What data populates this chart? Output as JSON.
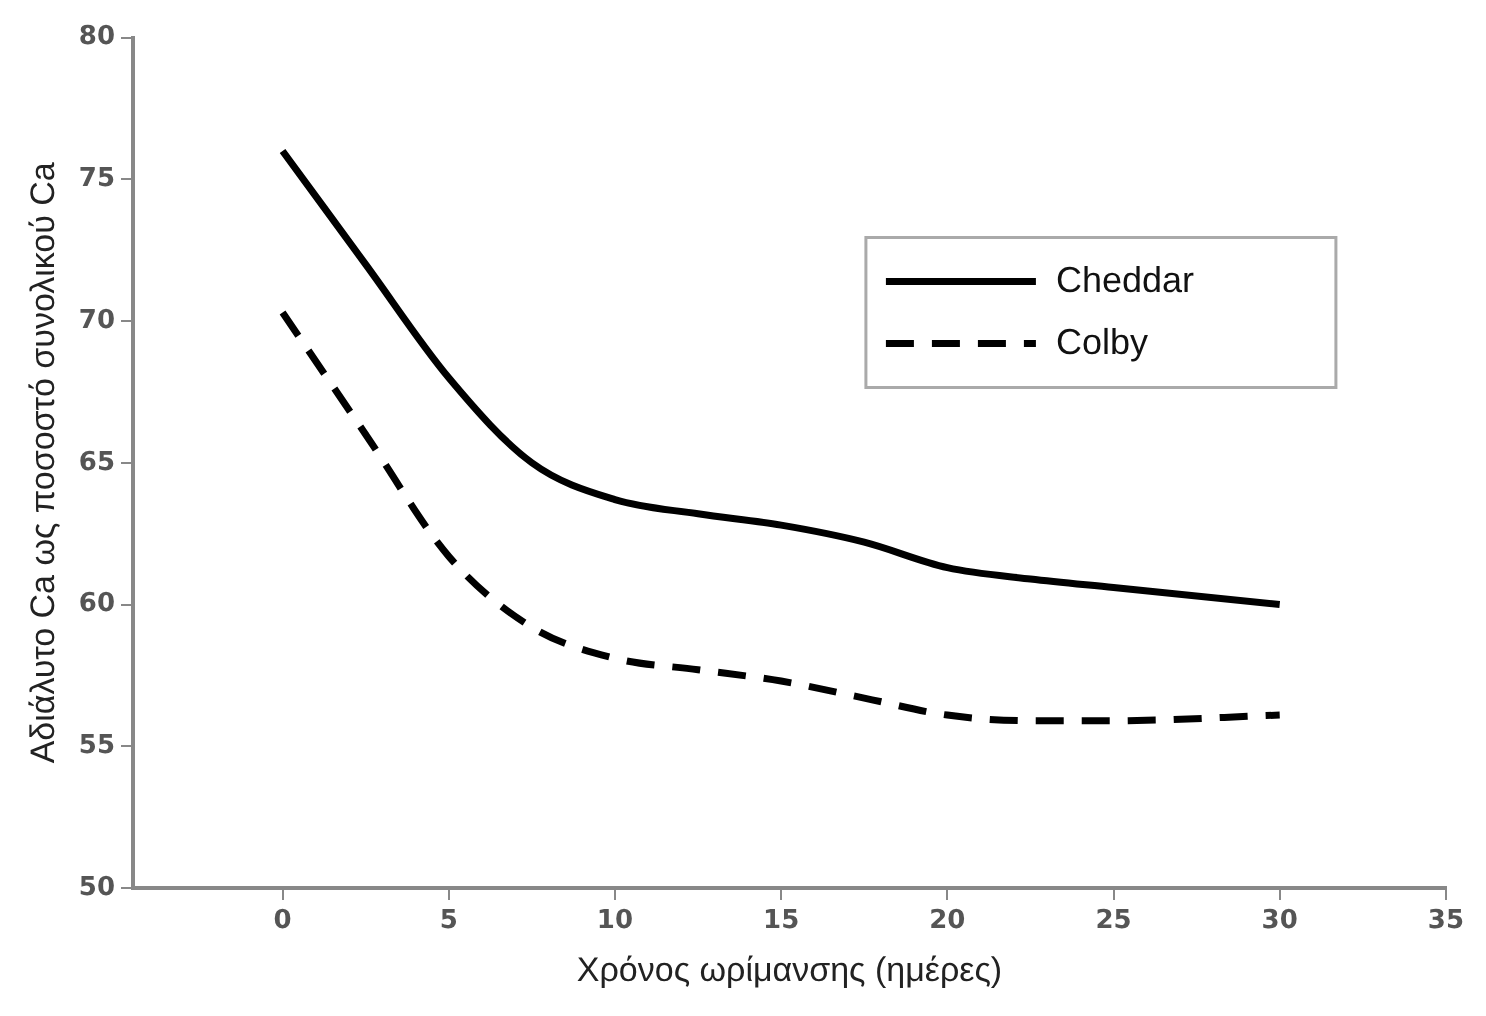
{
  "chart_data": {
    "type": "line",
    "xlabel": "Χρόνος ωρίμανσης (ημέρες)",
    "ylabel": "Αδιάλυτο Ca ως ποσοστό συνολικού Ca",
    "x": [
      0,
      2.5,
      5,
      7.5,
      10,
      12.5,
      15,
      17.5,
      20,
      22.5,
      25,
      30
    ],
    "series": [
      {
        "name": "Cheddar",
        "color": "#000000",
        "line_style": "solid",
        "values": [
          76,
          72,
          68,
          65,
          63.7,
          63.2,
          62.8,
          62.2,
          61.3,
          60.9,
          60.6,
          60
        ]
      },
      {
        "name": "Colby",
        "color": "#000000",
        "line_style": "dashed",
        "values": [
          70.3,
          66,
          61.7,
          59.2,
          58.1,
          57.7,
          57.3,
          56.7,
          56.1,
          55.9,
          55.9,
          56.1
        ]
      }
    ],
    "xlim": [
      -4.5,
      35
    ],
    "xticks": [
      0,
      5,
      10,
      15,
      20,
      25,
      30,
      35
    ],
    "ylim": [
      50,
      80
    ],
    "yticks": [
      50,
      55,
      60,
      65,
      70,
      75,
      80
    ],
    "grid": false,
    "legend": "right",
    "marker": "none"
  }
}
